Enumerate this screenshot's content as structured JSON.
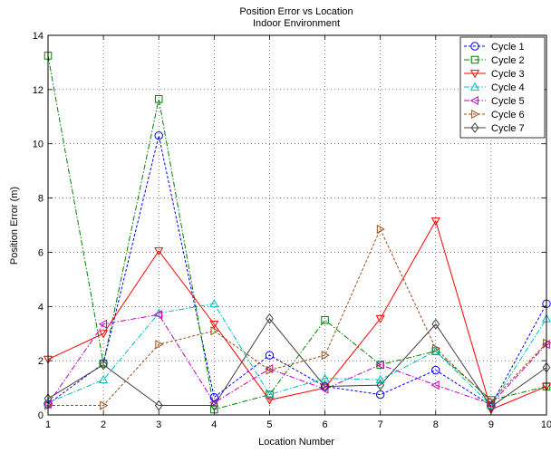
{
  "chart_data": {
    "type": "line",
    "title": "Position Error vs Location",
    "subtitle": "Indoor Environment",
    "xlabel": "Location Number",
    "ylabel": "Position Error (m)",
    "x": [
      1,
      2,
      3,
      4,
      5,
      6,
      7,
      8,
      9,
      10
    ],
    "xlim": [
      1,
      10
    ],
    "ylim": [
      0,
      14
    ],
    "xticks": [
      "1",
      "2",
      "3",
      "4",
      "5",
      "6",
      "7",
      "8",
      "9",
      "10"
    ],
    "yticks": [
      "0",
      "2",
      "4",
      "6",
      "8",
      "10",
      "12",
      "14"
    ],
    "grid": true,
    "legend_position": "top-right",
    "series": [
      {
        "name": "Cycle 1",
        "color": "#0000ff",
        "dash": "3,2",
        "marker": "circle",
        "values": [
          0.4,
          1.9,
          10.3,
          0.65,
          2.2,
          1.05,
          0.75,
          1.65,
          0.35,
          4.1
        ]
      },
      {
        "name": "Cycle 2",
        "color": "#008000",
        "dash": "6,2,1.5,2",
        "marker": "square",
        "values": [
          13.25,
          1.9,
          11.65,
          0.2,
          0.75,
          3.5,
          1.85,
          2.35,
          0.55,
          1.05
        ]
      },
      {
        "name": "Cycle 3",
        "color": "#ff0000",
        "dash": "",
        "marker": "triangle-down",
        "values": [
          2.05,
          3.0,
          6.05,
          3.35,
          0.55,
          1.0,
          3.55,
          7.15,
          0.2,
          1.05
        ]
      },
      {
        "name": "Cycle 4",
        "color": "#00bfbf",
        "dash": "6,2,1.5,2",
        "marker": "triangle-up",
        "values": [
          0.45,
          1.3,
          3.75,
          4.1,
          0.75,
          1.35,
          1.3,
          2.35,
          0.35,
          3.55
        ]
      },
      {
        "name": "Cycle 5",
        "color": "#bf00bf",
        "dash": "6,2,1.5,2",
        "marker": "triangle-left",
        "values": [
          0.4,
          3.35,
          3.7,
          0.45,
          1.7,
          0.95,
          1.85,
          1.1,
          0.4,
          2.6
        ]
      },
      {
        "name": "Cycle 6",
        "color": "#994c19",
        "dash": "3,2",
        "marker": "triangle-right",
        "values": [
          0.35,
          0.35,
          2.6,
          3.1,
          1.65,
          2.2,
          6.85,
          2.45,
          0.5,
          2.65
        ]
      },
      {
        "name": "Cycle 7",
        "color": "#404040",
        "dash": "",
        "marker": "diamond",
        "values": [
          0.6,
          1.85,
          0.35,
          0.35,
          3.55,
          1.05,
          1.1,
          3.35,
          0.3,
          1.75
        ]
      }
    ]
  }
}
